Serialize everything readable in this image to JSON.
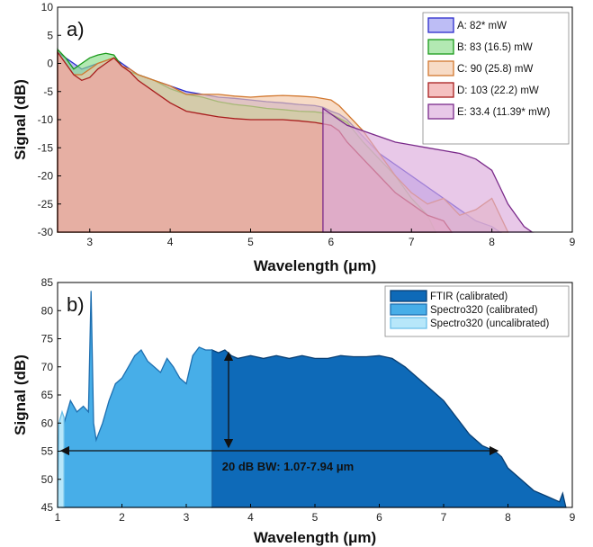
{
  "chart_data": [
    {
      "type": "area",
      "panel_label": "a)",
      "xlabel": "Wavelength (μm)",
      "ylabel": "Signal (dB)",
      "xlim": [
        2.6,
        9
      ],
      "ylim": [
        -30,
        10
      ],
      "xticks": [
        "3",
        "4",
        "5",
        "6",
        "7",
        "8",
        "9"
      ],
      "yticks": [
        "-30",
        "-25",
        "-20",
        "-15",
        "-10",
        "-5",
        "0",
        "5",
        "10"
      ],
      "grid": false,
      "legend_position": "top-right",
      "series": [
        {
          "name": "A: 82* mW",
          "fill": "#9a9af0",
          "stroke": "#2b2bcc",
          "points": [
            [
              2.6,
              2
            ],
            [
              2.7,
              1
            ],
            [
              2.8,
              0
            ],
            [
              2.9,
              -1
            ],
            [
              3.0,
              -0.5
            ],
            [
              3.1,
              0
            ],
            [
              3.2,
              0.5
            ],
            [
              3.3,
              1
            ],
            [
              3.4,
              0
            ],
            [
              3.5,
              -1
            ],
            [
              3.6,
              -2
            ],
            [
              3.7,
              -2.5
            ],
            [
              3.8,
              -3
            ],
            [
              3.9,
              -3.5
            ],
            [
              4.0,
              -4
            ],
            [
              4.2,
              -5
            ],
            [
              4.4,
              -5.5
            ],
            [
              4.6,
              -6
            ],
            [
              4.8,
              -6.2
            ],
            [
              5.0,
              -6.5
            ],
            [
              5.2,
              -6.8
            ],
            [
              5.4,
              -7
            ],
            [
              5.6,
              -7.3
            ],
            [
              5.8,
              -7.5
            ],
            [
              5.9,
              -7.8
            ],
            [
              6.0,
              -8.5
            ],
            [
              6.1,
              -9
            ],
            [
              6.2,
              -10
            ],
            [
              6.4,
              -13
            ],
            [
              6.6,
              -16
            ],
            [
              6.8,
              -18
            ],
            [
              7.0,
              -20
            ],
            [
              7.2,
              -22
            ],
            [
              7.4,
              -24
            ],
            [
              7.6,
              -26
            ],
            [
              7.8,
              -28
            ],
            [
              8.0,
              -29
            ],
            [
              8.1,
              -30
            ]
          ]
        },
        {
          "name": "B: 83 (16.5) mW",
          "fill": "#88dd88",
          "stroke": "#1a9a1a",
          "points": [
            [
              2.6,
              2.5
            ],
            [
              2.7,
              1
            ],
            [
              2.8,
              -1
            ],
            [
              2.9,
              0
            ],
            [
              3.0,
              1
            ],
            [
              3.1,
              1.5
            ],
            [
              3.2,
              1.8
            ],
            [
              3.3,
              1.5
            ],
            [
              3.4,
              -0.5
            ],
            [
              3.5,
              -1.5
            ],
            [
              3.6,
              -2
            ],
            [
              3.8,
              -3
            ],
            [
              4.0,
              -4.5
            ],
            [
              4.2,
              -5.5
            ],
            [
              4.4,
              -6
            ],
            [
              4.6,
              -6.8
            ],
            [
              4.8,
              -7.3
            ],
            [
              5.0,
              -7.6
            ],
            [
              5.2,
              -8
            ],
            [
              5.4,
              -8.2
            ],
            [
              5.6,
              -8.5
            ],
            [
              5.8,
              -8.6
            ],
            [
              6.0,
              -9
            ],
            [
              6.2,
              -10.5
            ],
            [
              6.4,
              -14
            ],
            [
              6.6,
              -17
            ],
            [
              6.8,
              -20
            ],
            [
              7.0,
              -24
            ],
            [
              7.2,
              -27
            ],
            [
              7.3,
              -30
            ]
          ]
        },
        {
          "name": "C: 90 (25.8) mW",
          "fill": "#f2c7a8",
          "stroke": "#d2782f",
          "points": [
            [
              2.6,
              2
            ],
            [
              2.7,
              0
            ],
            [
              2.8,
              -2
            ],
            [
              2.9,
              -2
            ],
            [
              3.0,
              -1
            ],
            [
              3.1,
              0
            ],
            [
              3.2,
              0.5
            ],
            [
              3.3,
              1
            ],
            [
              3.4,
              -0.5
            ],
            [
              3.5,
              -1
            ],
            [
              3.6,
              -2
            ],
            [
              3.8,
              -3
            ],
            [
              4.0,
              -4
            ],
            [
              4.2,
              -5.5
            ],
            [
              4.4,
              -5.5
            ],
            [
              4.6,
              -5.5
            ],
            [
              4.8,
              -5.8
            ],
            [
              5.0,
              -6
            ],
            [
              5.2,
              -5.8
            ],
            [
              5.4,
              -5.7
            ],
            [
              5.6,
              -5.8
            ],
            [
              5.8,
              -6
            ],
            [
              6.0,
              -6.5
            ],
            [
              6.1,
              -7.5
            ],
            [
              6.2,
              -9
            ],
            [
              6.4,
              -12
            ],
            [
              6.6,
              -16
            ],
            [
              6.8,
              -20
            ],
            [
              7.0,
              -23
            ],
            [
              7.2,
              -25
            ],
            [
              7.4,
              -24
            ],
            [
              7.6,
              -27
            ],
            [
              7.8,
              -26
            ],
            [
              8.0,
              -24
            ],
            [
              8.1,
              -27
            ],
            [
              8.2,
              -30
            ]
          ]
        },
        {
          "name": "D: 103 (22.2) mW",
          "fill": "#f0a0a0",
          "stroke": "#a81e1e",
          "points": [
            [
              2.6,
              2
            ],
            [
              2.7,
              0
            ],
            [
              2.8,
              -2
            ],
            [
              2.9,
              -3
            ],
            [
              3.0,
              -2.5
            ],
            [
              3.1,
              -1
            ],
            [
              3.2,
              0
            ],
            [
              3.3,
              1
            ],
            [
              3.4,
              -0.5
            ],
            [
              3.5,
              -1.5
            ],
            [
              3.6,
              -3
            ],
            [
              3.8,
              -5
            ],
            [
              4.0,
              -7
            ],
            [
              4.2,
              -8.5
            ],
            [
              4.4,
              -9
            ],
            [
              4.6,
              -9.5
            ],
            [
              4.8,
              -9.8
            ],
            [
              5.0,
              -10
            ],
            [
              5.2,
              -10
            ],
            [
              5.4,
              -10
            ],
            [
              5.6,
              -10.2
            ],
            [
              5.8,
              -10.5
            ],
            [
              6.0,
              -11
            ],
            [
              6.1,
              -12
            ],
            [
              6.2,
              -14
            ],
            [
              6.4,
              -17
            ],
            [
              6.6,
              -20
            ],
            [
              6.8,
              -23
            ],
            [
              7.0,
              -25
            ],
            [
              7.2,
              -27
            ],
            [
              7.4,
              -28
            ],
            [
              7.5,
              -30
            ]
          ]
        },
        {
          "name": "E: 33.4 (11.39* mW)",
          "fill": "#dcaadc",
          "stroke": "#7a2a8a",
          "points": [
            [
              5.9,
              -8
            ],
            [
              6.0,
              -9
            ],
            [
              6.2,
              -11
            ],
            [
              6.4,
              -12
            ],
            [
              6.6,
              -13
            ],
            [
              6.8,
              -14
            ],
            [
              7.0,
              -14.5
            ],
            [
              7.2,
              -15
            ],
            [
              7.4,
              -15.5
            ],
            [
              7.6,
              -16
            ],
            [
              7.8,
              -17
            ],
            [
              8.0,
              -19
            ],
            [
              8.1,
              -22
            ],
            [
              8.2,
              -25
            ],
            [
              8.3,
              -27
            ],
            [
              8.4,
              -29
            ],
            [
              8.5,
              -30
            ]
          ]
        }
      ]
    },
    {
      "type": "area",
      "panel_label": "b)",
      "xlabel": "Wavelength (μm)",
      "ylabel": "Signal (dB)",
      "xlim": [
        1,
        9
      ],
      "ylim": [
        45,
        85
      ],
      "xticks": [
        "1",
        "2",
        "3",
        "4",
        "5",
        "6",
        "7",
        "8",
        "9"
      ],
      "yticks": [
        "45",
        "50",
        "55",
        "60",
        "65",
        "70",
        "75",
        "80",
        "85"
      ],
      "grid": false,
      "legend_position": "top-right",
      "annotation": "20 dB BW: 1.07-7.94 μm",
      "series": [
        {
          "name": "FTIR (calibrated)",
          "fill": "#0e6ab8",
          "stroke": "#083f74",
          "points": [
            [
              3.4,
              73
            ],
            [
              3.5,
              72.5
            ],
            [
              3.6,
              73
            ],
            [
              3.7,
              72
            ],
            [
              3.8,
              71.5
            ],
            [
              4.0,
              72
            ],
            [
              4.2,
              71.5
            ],
            [
              4.4,
              72
            ],
            [
              4.6,
              71.5
            ],
            [
              4.8,
              72
            ],
            [
              5.0,
              71.5
            ],
            [
              5.2,
              71.5
            ],
            [
              5.4,
              72
            ],
            [
              5.6,
              71.8
            ],
            [
              5.8,
              71.8
            ],
            [
              6.0,
              72
            ],
            [
              6.2,
              71.5
            ],
            [
              6.4,
              70
            ],
            [
              6.6,
              68
            ],
            [
              6.8,
              66
            ],
            [
              7.0,
              64
            ],
            [
              7.2,
              61
            ],
            [
              7.4,
              58
            ],
            [
              7.6,
              56
            ],
            [
              7.8,
              55
            ],
            [
              7.9,
              54
            ],
            [
              8.0,
              52
            ],
            [
              8.2,
              50
            ],
            [
              8.4,
              48
            ],
            [
              8.6,
              47
            ],
            [
              8.8,
              46
            ],
            [
              8.85,
              47.5
            ],
            [
              8.9,
              45
            ]
          ]
        },
        {
          "name": "Spectro320 (calibrated)",
          "fill": "#47aee8",
          "stroke": "#1e6fb0",
          "points": [
            [
              1.07,
              56
            ],
            [
              1.1,
              60
            ],
            [
              1.2,
              64
            ],
            [
              1.3,
              62
            ],
            [
              1.4,
              63
            ],
            [
              1.48,
              62
            ],
            [
              1.52,
              83.5
            ],
            [
              1.56,
              60
            ],
            [
              1.6,
              57
            ],
            [
              1.7,
              60
            ],
            [
              1.8,
              64
            ],
            [
              1.9,
              67
            ],
            [
              2.0,
              68
            ],
            [
              2.1,
              70
            ],
            [
              2.2,
              72
            ],
            [
              2.3,
              73
            ],
            [
              2.4,
              71
            ],
            [
              2.5,
              70
            ],
            [
              2.6,
              69
            ],
            [
              2.7,
              71.5
            ],
            [
              2.8,
              70
            ],
            [
              2.9,
              68
            ],
            [
              3.0,
              67
            ],
            [
              3.1,
              72
            ],
            [
              3.2,
              73.5
            ],
            [
              3.3,
              73
            ],
            [
              3.4,
              73
            ]
          ]
        },
        {
          "name": "Spectro320 (uncalibrated)",
          "fill": "#b7e7fa",
          "stroke": "#6cc0ea",
          "points": [
            [
              1.0,
              45
            ],
            [
              1.02,
              60
            ],
            [
              1.07,
              62
            ],
            [
              1.1,
              61
            ]
          ]
        }
      ]
    }
  ]
}
